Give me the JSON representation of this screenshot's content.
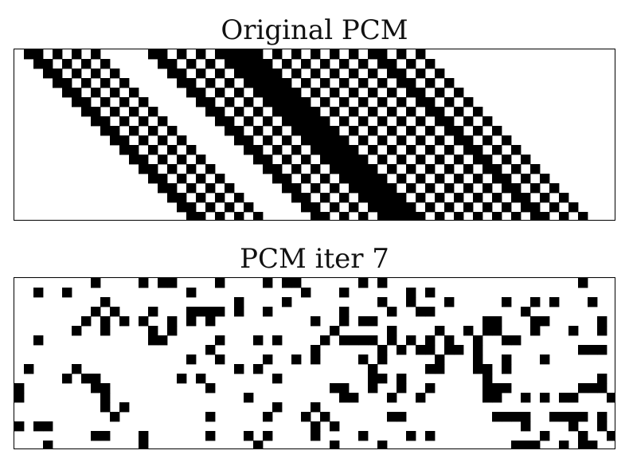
{
  "figures": [
    {
      "title": "Original PCM",
      "rows": 18,
      "cols": 63,
      "fill_color": "#000000",
      "background_color": "#ffffff"
    },
    {
      "title": "PCM iter 7",
      "rows": 18,
      "cols": 63,
      "fill_color": "#000000",
      "background_color": "#ffffff"
    }
  ]
}
